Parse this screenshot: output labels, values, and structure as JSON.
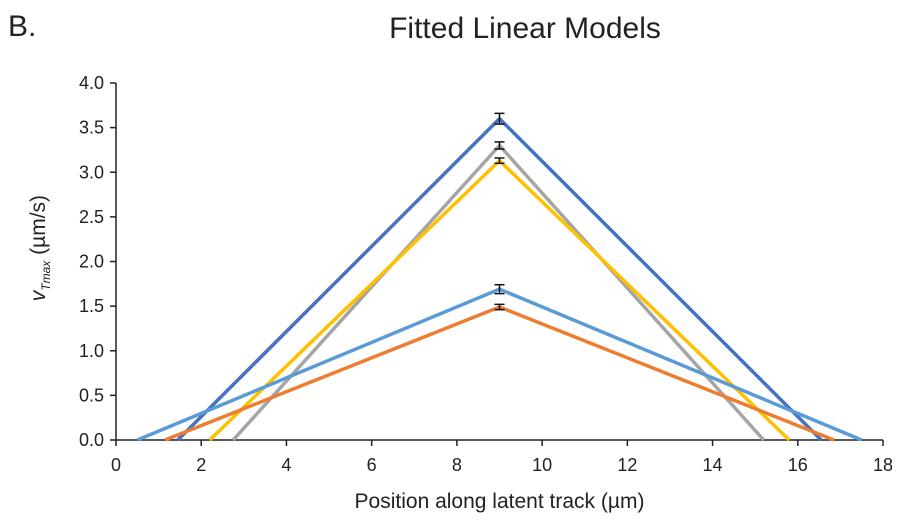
{
  "panel_label": "B.",
  "chart_data": {
    "type": "line",
    "title": "Fitted Linear Models",
    "ylabel_main": "v",
    "ylabel_sub": "Tmax",
    "ylabel_unit": " (µm/s)",
    "xlabel": "Position along latent track (µm)",
    "xlim": [
      0,
      18
    ],
    "ylim": [
      0,
      4.0
    ],
    "x_ticks": [
      "0",
      "2",
      "4",
      "6",
      "8",
      "10",
      "12",
      "14",
      "16",
      "18"
    ],
    "y_ticks": [
      "0.0",
      "0.5",
      "1.0",
      "1.5",
      "2.0",
      "2.5",
      "3.0",
      "3.5",
      "4.0"
    ],
    "grid": false,
    "legend": "none",
    "series": [
      {
        "color": "#4472c4",
        "x": [
          1.45,
          9,
          16.55
        ],
        "y": [
          0,
          3.6,
          0
        ],
        "error": 0.06
      },
      {
        "color": "#a5a5a5",
        "x": [
          2.75,
          9,
          15.2
        ],
        "y": [
          0,
          3.3,
          0
        ],
        "error": 0.04
      },
      {
        "color": "#ffc000",
        "x": [
          2.2,
          9,
          15.8
        ],
        "y": [
          0,
          3.13,
          0
        ],
        "error": 0.03
      },
      {
        "color": "#5b9bd5",
        "x": [
          0.5,
          9,
          17.5
        ],
        "y": [
          0,
          1.69,
          0
        ],
        "error": 0.05
      },
      {
        "color": "#ed7d31",
        "x": [
          1.15,
          9,
          16.85
        ],
        "y": [
          0,
          1.49,
          0
        ],
        "error": 0.03
      }
    ]
  }
}
